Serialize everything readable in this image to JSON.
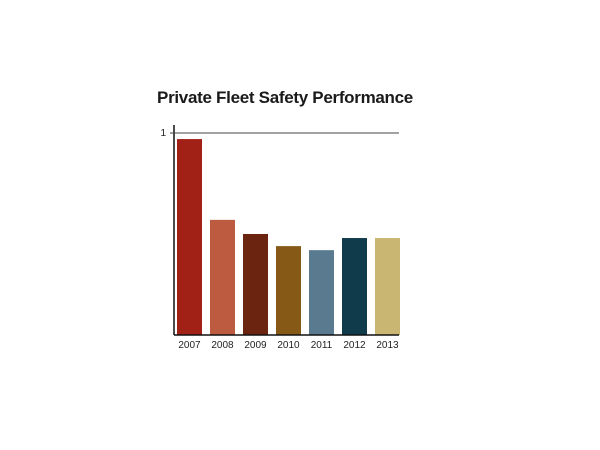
{
  "chart_data": {
    "type": "bar",
    "title": "Private Fleet Safety Performance",
    "xlabel": "",
    "ylabel": "",
    "categories": [
      "2007",
      "2008",
      "2009",
      "2010",
      "2011",
      "2012",
      "2013"
    ],
    "values": [
      0.97,
      0.57,
      0.5,
      0.44,
      0.42,
      0.48,
      0.48
    ],
    "colors": [
      "#a12117",
      "#bd5b40",
      "#6b2410",
      "#865a16",
      "#5a7b8f",
      "#0f3b4b",
      "#c9b672"
    ],
    "ylim": [
      0,
      1
    ],
    "yticks": [
      {
        "value": 1,
        "label": "1"
      }
    ],
    "grid": false
  }
}
